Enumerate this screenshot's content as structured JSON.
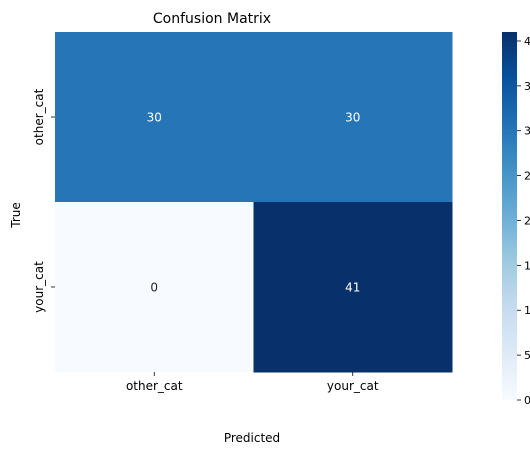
{
  "chart_data": {
    "type": "heatmap",
    "title": "Confusion Matrix",
    "xlabel": "Predicted",
    "ylabel": "True",
    "x_categories": [
      "other_cat",
      "your_cat"
    ],
    "y_categories": [
      "other_cat",
      "your_cat"
    ],
    "values": [
      [
        30,
        30
      ],
      [
        0,
        41
      ]
    ],
    "colormap": "Blues",
    "vmin": 0,
    "vmax": 41,
    "colorbar_ticks": [
      0,
      5,
      10,
      15,
      20,
      25,
      30,
      35,
      40
    ],
    "annotate": true
  }
}
